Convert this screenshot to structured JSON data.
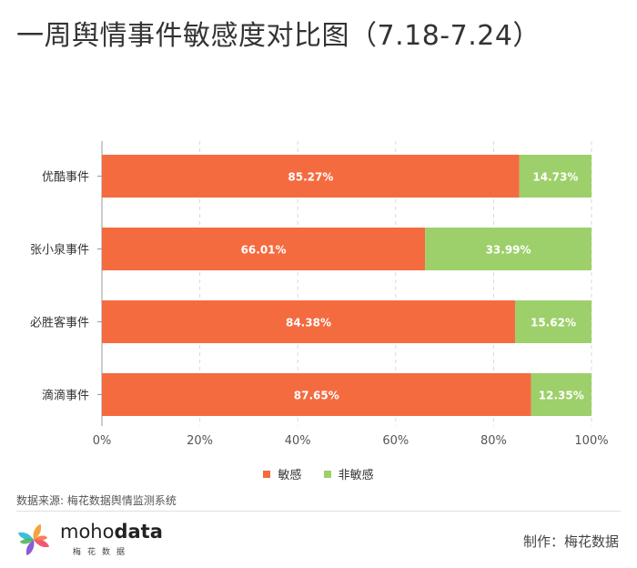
{
  "title": "一周舆情事件敏感度对比图（7.18-7.24）",
  "chart_data": {
    "type": "bar",
    "orientation": "horizontal",
    "stacked": true,
    "categories": [
      "优酷事件",
      "张小泉事件",
      "必胜客事件",
      "滴滴事件"
    ],
    "series": [
      {
        "name": "敏感",
        "color": "#f46b40",
        "values": [
          85.27,
          66.01,
          84.38,
          87.65
        ],
        "labels": [
          "85.27%",
          "66.01%",
          "84.38%",
          "87.65%"
        ]
      },
      {
        "name": "非敏感",
        "color": "#9dd06a",
        "values": [
          14.73,
          33.99,
          15.62,
          12.35
        ],
        "labels": [
          "14.73%",
          "33.99%",
          "15.62%",
          "12.35%"
        ]
      }
    ],
    "xlim": [
      0,
      100
    ],
    "xticks": [
      "0%",
      "20%",
      "40%",
      "60%",
      "80%",
      "100%"
    ],
    "grid": "vertical-dashed",
    "legend": "bottom-center"
  },
  "legend": [
    {
      "label": "敏感",
      "color": "#f46b40"
    },
    {
      "label": "非敏感",
      "color": "#9dd06a"
    }
  ],
  "source": "数据来源: 梅花数据舆情监测系统",
  "logo": {
    "word_light": "moho",
    "word_bold": "data",
    "sub": "梅花数据"
  },
  "credit": "制作：梅花数据"
}
